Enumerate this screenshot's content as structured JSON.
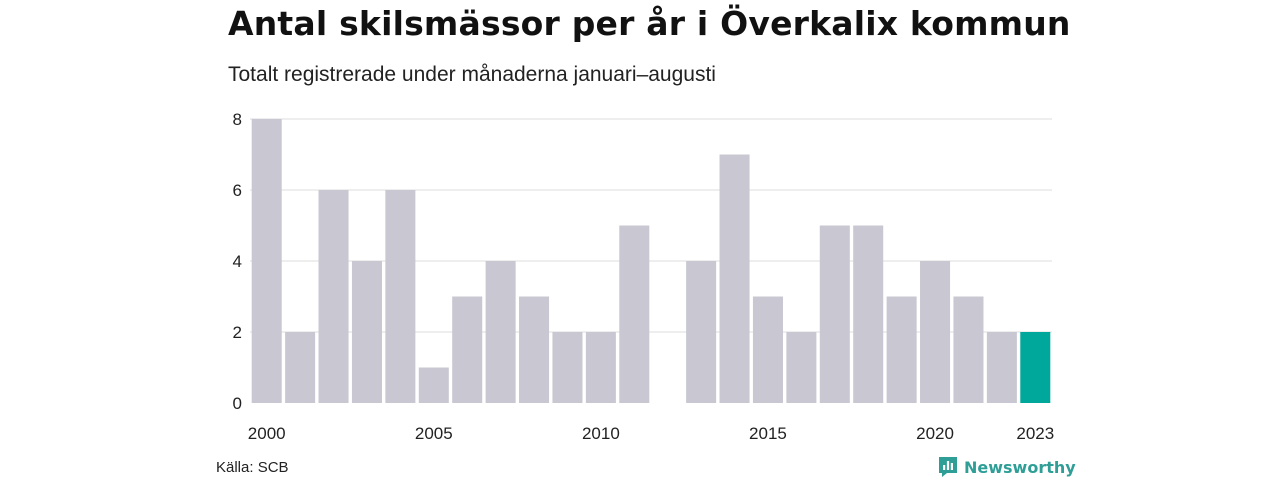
{
  "title": "Antal skilsmässor per år i Överkalix kommun",
  "subtitle": "Totalt registrerade under månaderna januari–augusti",
  "source": "Källa: SCB",
  "brand": "Newsworthy",
  "colors": {
    "bar": "#c8c7d2",
    "highlight": "#00a79b",
    "grid": "#dddddd",
    "brand": "#2e9e96"
  },
  "chart_data": {
    "type": "bar",
    "title": "Antal skilsmässor per år i Överkalix kommun",
    "subtitle": "Totalt registrerade under månaderna januari–augusti",
    "categories": [
      "2000",
      "2001",
      "2002",
      "2003",
      "2004",
      "2005",
      "2006",
      "2007",
      "2008",
      "2009",
      "2010",
      "2011",
      "2012",
      "2013",
      "2014",
      "2015",
      "2016",
      "2017",
      "2018",
      "2019",
      "2020",
      "2021",
      "2022",
      "2023"
    ],
    "values": [
      8,
      2,
      6,
      4,
      6,
      1,
      3,
      4,
      3,
      2,
      2,
      5,
      0,
      4,
      7,
      3,
      2,
      5,
      5,
      3,
      4,
      3,
      2,
      2
    ],
    "highlight_category": "2023",
    "xticks": [
      "2000",
      "2005",
      "2010",
      "2015",
      "2020",
      "2023"
    ],
    "yticks": [
      0,
      2,
      4,
      6,
      8
    ],
    "ylim": [
      0,
      8
    ],
    "xlabel": "",
    "ylabel": "",
    "grid": true,
    "legend": "none"
  }
}
